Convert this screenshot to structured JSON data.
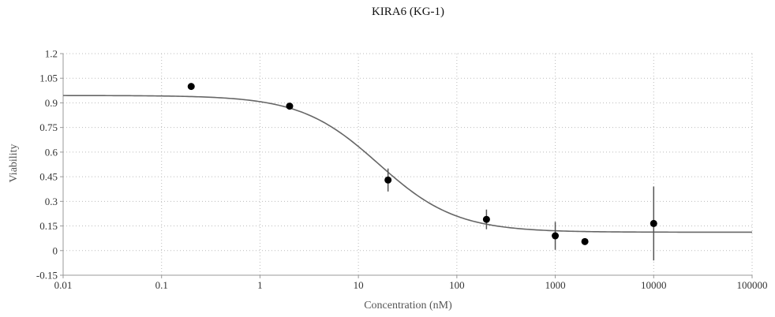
{
  "chart_data": {
    "type": "scatter",
    "title": "KIRA6 (KG-1)",
    "xlabel": "Concentration (nM)",
    "ylabel": "Viability",
    "xscale": "log",
    "xlim": [
      0.01,
      100000
    ],
    "ylim": [
      -0.15,
      1.2
    ],
    "grid": true,
    "x_ticks": [
      0.01,
      0.1,
      1,
      10,
      100,
      1000,
      10000,
      100000
    ],
    "x_tick_labels": [
      "0.01",
      "0.1",
      "1",
      "10",
      "100",
      "1000",
      "10000",
      "100000"
    ],
    "y_ticks": [
      -0.15,
      0,
      0.15,
      0.3,
      0.45,
      0.6,
      0.75,
      0.9,
      1.05,
      1.2
    ],
    "y_tick_labels": [
      "-0.15",
      "0",
      "0.15",
      "0.3",
      "0.45",
      "0.6",
      "0.75",
      "0.9",
      "1.05",
      "1.2"
    ],
    "points": [
      {
        "x": 0.2,
        "y": 1.0,
        "err": 0
      },
      {
        "x": 2,
        "y": 0.88,
        "err": 0.02
      },
      {
        "x": 20,
        "y": 0.43,
        "err": 0.07
      },
      {
        "x": 200,
        "y": 0.19,
        "err": 0.06
      },
      {
        "x": 1000,
        "y": 0.09,
        "err": 0.085
      },
      {
        "x": 2000,
        "y": 0.055,
        "err": 0
      },
      {
        "x": 10000,
        "y": 0.165,
        "err": 0.225
      }
    ],
    "fit": {
      "model": "4PL",
      "top": 0.945,
      "bottom": 0.112,
      "ec50": 16,
      "hill": 1.1
    },
    "colors": {
      "points": "#000000",
      "curve": "#666666",
      "errorbars": "#555555"
    }
  }
}
